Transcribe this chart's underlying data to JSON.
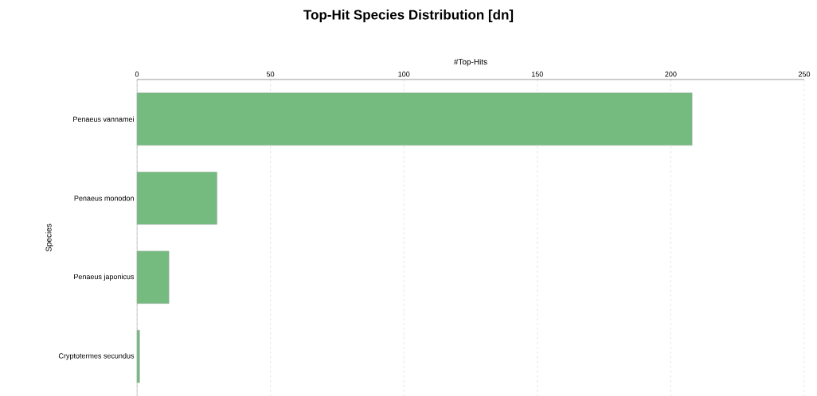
{
  "chart_data": {
    "type": "bar",
    "orientation": "horizontal",
    "title": "Top-Hit Species Distribution [dn]",
    "xlabel": "#Top-Hits",
    "ylabel": "Species",
    "categories": [
      "Penaeus vannamei",
      "Penaeus monodon",
      "Penaeus japonicus",
      "Cryptotermes secundus"
    ],
    "values": [
      208,
      30,
      12,
      1
    ],
    "color": "#75bb80",
    "xlim": [
      0,
      250
    ],
    "xticks": [
      0,
      50,
      100,
      150,
      200,
      250
    ],
    "grid": "x"
  }
}
